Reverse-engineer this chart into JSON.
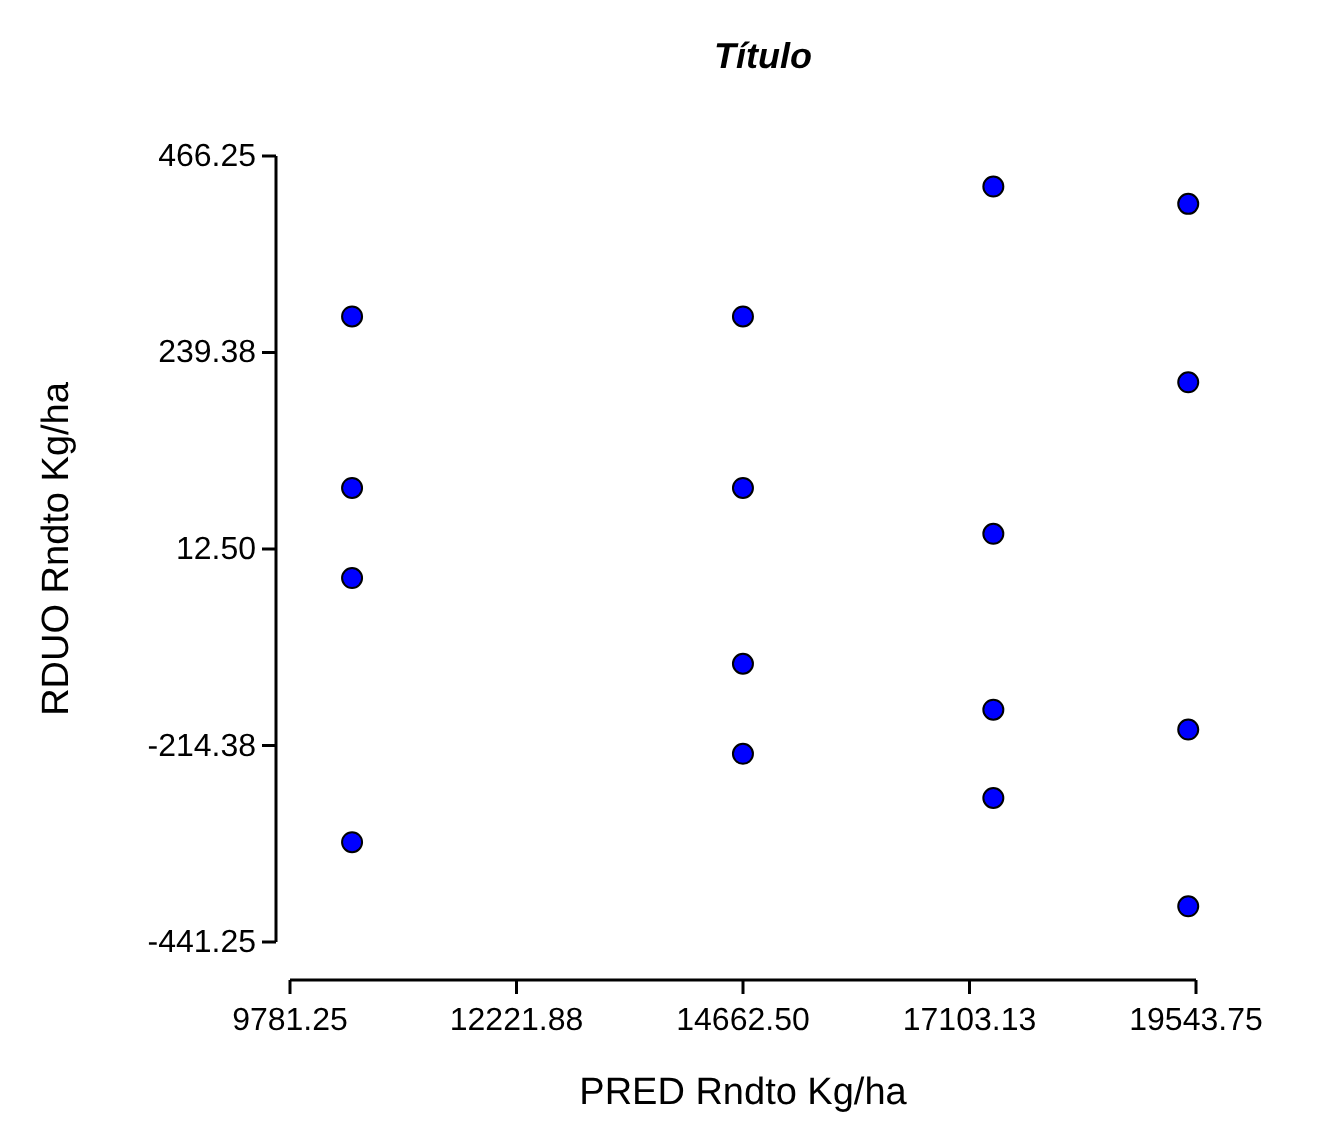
{
  "chart_data": {
    "type": "scatter",
    "title": "Título",
    "xlabel": "PRED Rndto Kg/ha",
    "ylabel": "RDUO Rndto Kg/ha",
    "xlim": [
      9781.25,
      19543.75
    ],
    "xticks": [
      {
        "value": 9781.25,
        "label": "9781.25"
      },
      {
        "value": 12221.88,
        "label": "12221.88"
      },
      {
        "value": 14662.5,
        "label": "14662.50"
      },
      {
        "value": 17103.13,
        "label": "17103.13"
      },
      {
        "value": 19543.75,
        "label": "19543.75"
      }
    ],
    "ylim": [
      -441.25,
      466.25
    ],
    "yticks": [
      {
        "value": -441.25,
        "label": "-441.25"
      },
      {
        "value": -214.38,
        "label": "-214.38"
      },
      {
        "value": 12.5,
        "label": "12.50"
      },
      {
        "value": 239.38,
        "label": "239.38"
      },
      {
        "value": 466.25,
        "label": "466.25"
      }
    ],
    "grid": false,
    "marker": "circle",
    "series": [
      {
        "color": "#0000ff",
        "x": [
          10450,
          10450,
          10450,
          10450,
          14662,
          14662,
          14662,
          14662,
          17360,
          17360,
          17360,
          17360,
          19460,
          19460,
          19460,
          19460
        ],
        "values": [
          281,
          83,
          -21,
          -326,
          281,
          83,
          -120,
          -224,
          431,
          30,
          -173,
          -275,
          411,
          205,
          -196,
          -400
        ]
      }
    ]
  }
}
